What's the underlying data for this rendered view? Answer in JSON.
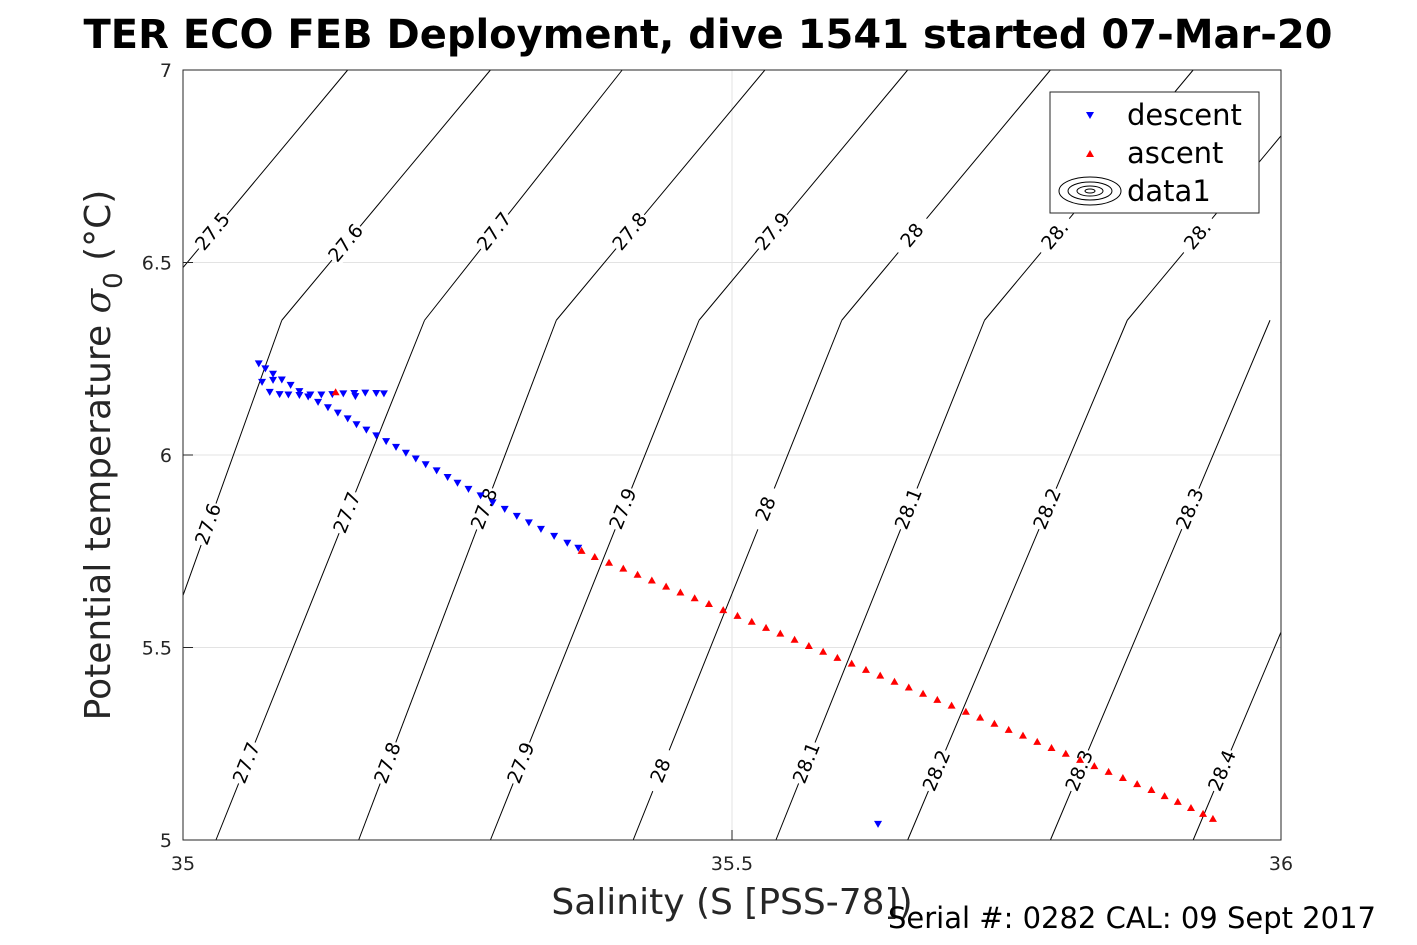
{
  "chart_data": {
    "type": "scatter",
    "title": "TER ECO FEB Deployment, dive 1541 started 07-Mar-20",
    "xlabel": "Salinity (S [PSS-78])",
    "ylabel_main": "Potential temperature ",
    "ylabel_sym": "σ",
    "ylabel_sub": "0",
    "ylabel_unit": " (°C)",
    "xlim": [
      35,
      36
    ],
    "ylim": [
      5,
      7
    ],
    "xticks": [
      35,
      35.5,
      36
    ],
    "yticks": [
      5,
      5.5,
      6,
      6.5,
      7
    ],
    "xtick_labels": [
      "35",
      "35.5",
      "36"
    ],
    "ytick_labels": [
      "5",
      "5.5",
      "6",
      "6.5",
      "7"
    ],
    "grid": true,
    "legend_position": "top-right",
    "legend": [
      "descent",
      "ascent",
      "data1"
    ],
    "series": [
      {
        "name": "descent",
        "marker": "down-triangle",
        "color": "#0000ff",
        "points": [
          [
            35.069,
            6.238
          ],
          [
            35.075,
            6.225
          ],
          [
            35.082,
            6.211
          ],
          [
            35.09,
            6.196
          ],
          [
            35.098,
            6.182
          ],
          [
            35.106,
            6.166
          ],
          [
            35.114,
            6.152
          ],
          [
            35.123,
            6.138
          ],
          [
            35.132,
            6.124
          ],
          [
            35.141,
            6.11
          ],
          [
            35.15,
            6.095
          ],
          [
            35.158,
            6.08
          ],
          [
            35.167,
            6.066
          ],
          [
            35.176,
            6.051
          ],
          [
            35.185,
            6.036
          ],
          [
            35.194,
            6.021
          ],
          [
            35.203,
            6.006
          ],
          [
            35.212,
            5.991
          ],
          [
            35.221,
            5.976
          ],
          [
            35.231,
            5.96
          ],
          [
            35.241,
            5.943
          ],
          [
            35.25,
            5.928
          ],
          [
            35.26,
            5.912
          ],
          [
            35.271,
            5.895
          ],
          [
            35.282,
            5.877
          ],
          [
            35.293,
            5.86
          ],
          [
            35.304,
            5.842
          ],
          [
            35.315,
            5.825
          ],
          [
            35.326,
            5.808
          ],
          [
            35.338,
            5.79
          ],
          [
            35.35,
            5.772
          ],
          [
            35.36,
            5.759
          ],
          [
            35.072,
            6.19
          ],
          [
            35.082,
            6.195
          ],
          [
            35.079,
            6.164
          ],
          [
            35.088,
            6.158
          ],
          [
            35.096,
            6.157
          ],
          [
            35.106,
            6.156
          ],
          [
            35.116,
            6.157
          ],
          [
            35.126,
            6.157
          ],
          [
            35.136,
            6.158
          ],
          [
            35.146,
            6.16
          ],
          [
            35.156,
            6.161
          ],
          [
            35.166,
            6.162
          ],
          [
            35.176,
            6.161
          ],
          [
            35.183,
            6.16
          ],
          [
            35.157,
            6.153
          ],
          [
            35.633,
            5.042
          ]
        ]
      },
      {
        "name": "ascent",
        "marker": "up-triangle",
        "color": "#ff0000",
        "points": [
          [
            35.363,
            5.751
          ],
          [
            35.375,
            5.735
          ],
          [
            35.388,
            5.72
          ],
          [
            35.401,
            5.705
          ],
          [
            35.414,
            5.689
          ],
          [
            35.427,
            5.674
          ],
          [
            35.44,
            5.658
          ],
          [
            35.453,
            5.643
          ],
          [
            35.466,
            5.628
          ],
          [
            35.479,
            5.613
          ],
          [
            35.492,
            5.597
          ],
          [
            35.505,
            5.582
          ],
          [
            35.518,
            5.567
          ],
          [
            35.531,
            5.551
          ],
          [
            35.544,
            5.536
          ],
          [
            35.557,
            5.52
          ],
          [
            35.57,
            5.504
          ],
          [
            35.583,
            5.489
          ],
          [
            35.596,
            5.473
          ],
          [
            35.609,
            5.458
          ],
          [
            35.622,
            5.442
          ],
          [
            35.635,
            5.427
          ],
          [
            35.648,
            5.411
          ],
          [
            35.661,
            5.396
          ],
          [
            35.674,
            5.38
          ],
          [
            35.687,
            5.364
          ],
          [
            35.7,
            5.349
          ],
          [
            35.713,
            5.333
          ],
          [
            35.726,
            5.318
          ],
          [
            35.739,
            5.302
          ],
          [
            35.752,
            5.286
          ],
          [
            35.765,
            5.271
          ],
          [
            35.778,
            5.255
          ],
          [
            35.791,
            5.239
          ],
          [
            35.804,
            5.224
          ],
          [
            35.817,
            5.208
          ],
          [
            35.83,
            5.192
          ],
          [
            35.843,
            5.177
          ],
          [
            35.856,
            5.161
          ],
          [
            35.869,
            5.145
          ],
          [
            35.882,
            5.13
          ],
          [
            35.894,
            5.114
          ],
          [
            35.906,
            5.099
          ],
          [
            35.918,
            5.083
          ],
          [
            35.929,
            5.068
          ],
          [
            35.938,
            5.055
          ],
          [
            35.139,
            6.163
          ]
        ]
      }
    ],
    "contour_upper": {
      "levels": [
        "27.5",
        "27.6",
        "27.7",
        "27.8",
        "27.9",
        "28",
        "28.1",
        "28.2"
      ],
      "bottom_x": [
        34.96,
        35.09,
        35.22,
        35.34,
        35.47,
        35.6,
        35.73,
        35.86
      ],
      "top_x": [
        35.15,
        35.28,
        35.4,
        35.53,
        35.66,
        35.79,
        35.92,
        36.05
      ],
      "label_labels": [
        "27.5",
        "27.6",
        "27.7",
        "27.8",
        "27.9",
        "28",
        "28.",
        "28."
      ],
      "label_y": [
        6.58,
        6.55,
        6.58,
        6.58,
        6.58,
        6.57,
        6.57,
        6.57
      ]
    },
    "contour_lower": {
      "levels": [
        "27.6",
        "27.7",
        "27.8",
        "27.9",
        "28",
        "28.1",
        "28.2",
        "28.3",
        "28.4"
      ],
      "bottom_x": [
        34.92,
        35.03,
        35.16,
        35.28,
        35.41,
        35.54,
        35.66,
        35.79,
        35.92
      ],
      "top_x": [
        35.09,
        35.22,
        35.34,
        35.47,
        35.6,
        35.73,
        35.86,
        35.99,
        36.12
      ],
      "label_top": [
        "27.6",
        "27.7",
        "27.8",
        "27.9",
        "28",
        "28.1",
        "28.2",
        "28.3"
      ],
      "label_top_y": [
        5.82,
        5.85,
        5.86,
        5.86,
        5.86,
        5.86,
        5.86,
        5.86
      ],
      "label_bottom": [
        "27.7",
        "27.8",
        "27.9",
        "28",
        "28.1",
        "28.2",
        "28.3",
        "28.4"
      ],
      "label_bottom_y": [
        5.2,
        5.2,
        5.2,
        5.18,
        5.2,
        5.18,
        5.18,
        5.18
      ]
    }
  },
  "legend_items": [
    "descent",
    "ascent",
    "data1"
  ],
  "footer": "Serial #: 0282  CAL: 09 Sept 2017"
}
